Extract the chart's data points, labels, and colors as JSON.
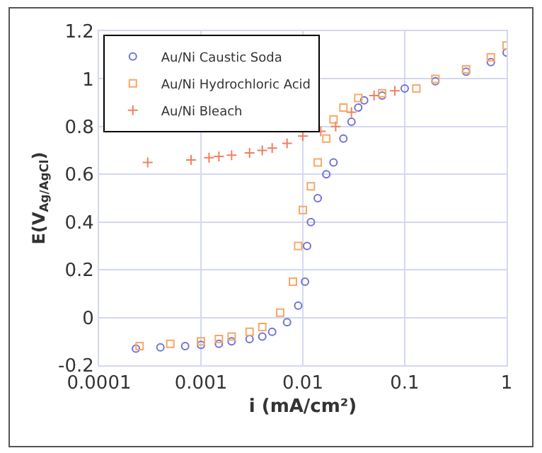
{
  "chart_data": {
    "type": "scatter",
    "xlabel": "i (mA/cm²)",
    "ylabel": "E(V$_{Ag/AgCl}$)",
    "log": "x",
    "grid": true,
    "legend": "top left",
    "xlim": [
      0.0001,
      1
    ],
    "xticks": [
      {
        "value": 0.0001,
        "label": "0.0001"
      },
      {
        "value": 0.001,
        "label": "0.001"
      },
      {
        "value": 0.01,
        "label": "0.01"
      },
      {
        "value": 0.1,
        "label": "0.1"
      },
      {
        "value": 1,
        "label": "1"
      }
    ],
    "ylim": [
      -0.2,
      1.2
    ],
    "yticks": [
      -0.2,
      0,
      0.2,
      0.4,
      0.6,
      0.8,
      1,
      1.2
    ],
    "series": [
      {
        "name": "Au/Ni Caustic Soda",
        "color": "#6f74d0",
        "marker": "circle",
        "x": [
          0.00023,
          0.0004,
          0.0007,
          0.001,
          0.0015,
          0.002,
          0.003,
          0.004,
          0.005,
          0.007,
          0.009,
          0.0105,
          0.011,
          0.012,
          0.014,
          0.017,
          0.02,
          0.025,
          0.03,
          0.035,
          0.04,
          0.06,
          0.1,
          0.2,
          0.4,
          0.7,
          1
        ],
        "values": [
          -0.13,
          -0.125,
          -0.12,
          -0.115,
          -0.11,
          -0.1,
          -0.09,
          -0.08,
          -0.06,
          -0.02,
          0.05,
          0.15,
          0.3,
          0.4,
          0.5,
          0.6,
          0.65,
          0.75,
          0.82,
          0.88,
          0.91,
          0.93,
          0.96,
          0.99,
          1.03,
          1.07,
          1.11
        ]
      },
      {
        "name": "Au/Ni Hydrochloric Acid",
        "color": "#f7a868",
        "marker": "square",
        "x": [
          0.00025,
          0.0005,
          0.001,
          0.0015,
          0.002,
          0.003,
          0.004,
          0.006,
          0.008,
          0.009,
          0.01,
          0.012,
          0.014,
          0.017,
          0.02,
          0.025,
          0.035,
          0.06,
          0.13,
          0.2,
          0.4,
          0.7,
          1
        ],
        "values": [
          -0.12,
          -0.11,
          -0.1,
          -0.09,
          -0.08,
          -0.06,
          -0.04,
          0.02,
          0.15,
          0.3,
          0.45,
          0.55,
          0.65,
          0.75,
          0.83,
          0.88,
          0.92,
          0.94,
          0.96,
          1.0,
          1.04,
          1.09,
          1.14
        ]
      },
      {
        "name": "Au/Ni Bleach",
        "color": "#f08060",
        "marker": "cross",
        "x": [
          0.0003,
          0.0008,
          0.0012,
          0.0015,
          0.002,
          0.003,
          0.004,
          0.005,
          0.007,
          0.01,
          0.015,
          0.021,
          0.03,
          0.05,
          0.08
        ],
        "values": [
          0.65,
          0.66,
          0.67,
          0.675,
          0.68,
          0.69,
          0.7,
          0.71,
          0.73,
          0.76,
          0.78,
          0.8,
          0.86,
          0.93,
          0.95
        ]
      }
    ]
  }
}
